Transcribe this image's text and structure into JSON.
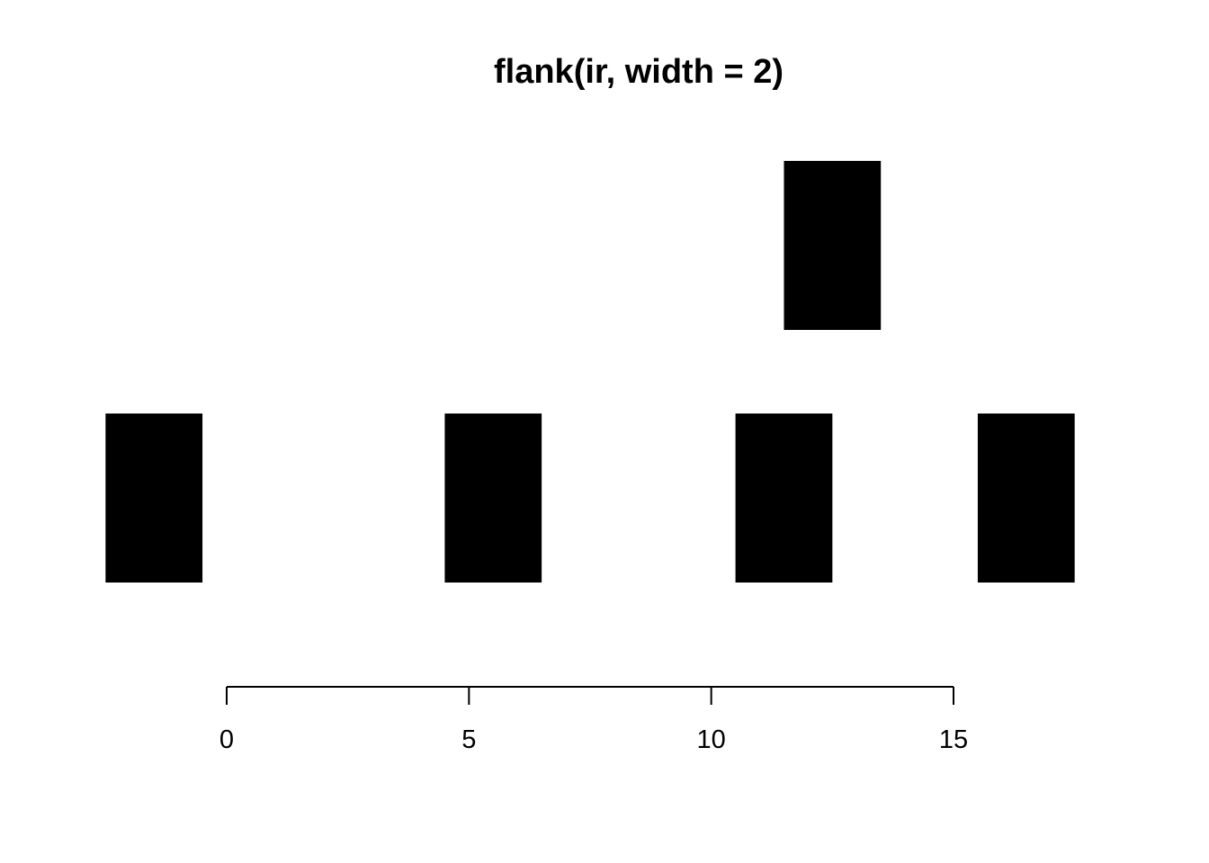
{
  "chart_data": {
    "type": "bar",
    "title": "flank(ir, width = 2)",
    "xlabel": "",
    "ylabel": "",
    "x_ticks": [
      0,
      5,
      10,
      15
    ],
    "x_tick_labels": [
      "0",
      "5",
      "10",
      "15"
    ],
    "xlim": [
      -2,
      18.5
    ],
    "intervals": [
      {
        "start": -2,
        "end": -1,
        "level": 1
      },
      {
        "start": 5,
        "end": 6,
        "level": 1
      },
      {
        "start": 11,
        "end": 12,
        "level": 1
      },
      {
        "start": 16,
        "end": 17,
        "level": 1
      },
      {
        "start": 12,
        "end": 13,
        "level": 2
      }
    ],
    "fill_color": "#000000",
    "grid": false
  }
}
